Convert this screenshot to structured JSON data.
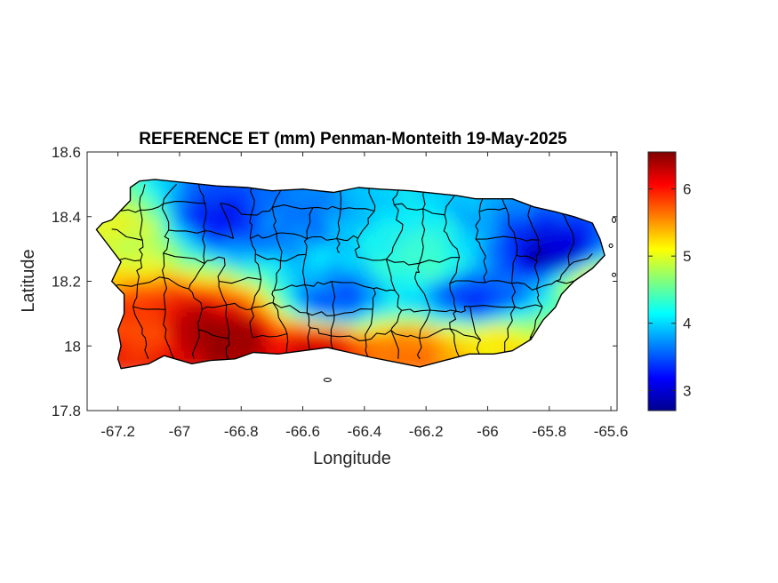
{
  "chart_data": {
    "type": "heatmap",
    "title": "REFERENCE ET (mm) Penman-Monteith 19-May-2025",
    "xlabel": "Longitude",
    "ylabel": "Latitude",
    "xlim": [
      -67.3,
      -65.58
    ],
    "ylim": [
      17.8,
      18.6
    ],
    "x_ticks": [
      -67.2,
      -67,
      -66.8,
      -66.6,
      -66.4,
      -66.2,
      -66,
      -65.8,
      -65.6
    ],
    "x_tick_labels": [
      "-67.2",
      "-67",
      "-66.8",
      "-66.6",
      "-66.4",
      "-66.2",
      "-66",
      "-65.8",
      "-65.6"
    ],
    "y_ticks": [
      17.8,
      18,
      18.2,
      18.4,
      18.6
    ],
    "y_tick_labels": [
      "17.8",
      "18",
      "18.2",
      "18.4",
      "18.6"
    ],
    "colorbar": {
      "colormap": "jet",
      "clim": [
        2.7,
        6.55
      ],
      "ticks": [
        3,
        4,
        5,
        6
      ],
      "tick_labels": [
        "3",
        "4",
        "5",
        "6"
      ]
    },
    "field_description": "Highest ET (about 6-6.5 mm) along the southwest and south coast; lowest (about 2.8-3.5 mm) in the north-central mountains and near the northeast (El Yunque); central interior about 3.5-4.5 mm; western and eastern edges about 4.5-5.5 mm",
    "samples": [
      {
        "lon": -66.95,
        "lat": 18.05,
        "value": 6.4
      },
      {
        "lon": -66.85,
        "lat": 18.02,
        "value": 6.5
      },
      {
        "lon": -67.1,
        "lat": 18.05,
        "value": 5.9
      },
      {
        "lon": -66.55,
        "lat": 18.0,
        "value": 6.2
      },
      {
        "lon": -66.25,
        "lat": 17.98,
        "value": 5.7
      },
      {
        "lon": -66.0,
        "lat": 18.0,
        "value": 5.2
      },
      {
        "lon": -66.85,
        "lat": 18.4,
        "value": 3.2
      },
      {
        "lon": -66.7,
        "lat": 18.38,
        "value": 3.6
      },
      {
        "lon": -66.5,
        "lat": 18.14,
        "value": 3.4
      },
      {
        "lon": -65.78,
        "lat": 18.28,
        "value": 2.9
      },
      {
        "lon": -66.05,
        "lat": 18.15,
        "value": 3.3
      },
      {
        "lon": -67.2,
        "lat": 18.35,
        "value": 5.0
      },
      {
        "lon": -65.65,
        "lat": 18.2,
        "value": 5.0
      },
      {
        "lon": -66.2,
        "lat": 18.25,
        "value": 4.3
      }
    ],
    "overlay": "municipality boundaries"
  }
}
